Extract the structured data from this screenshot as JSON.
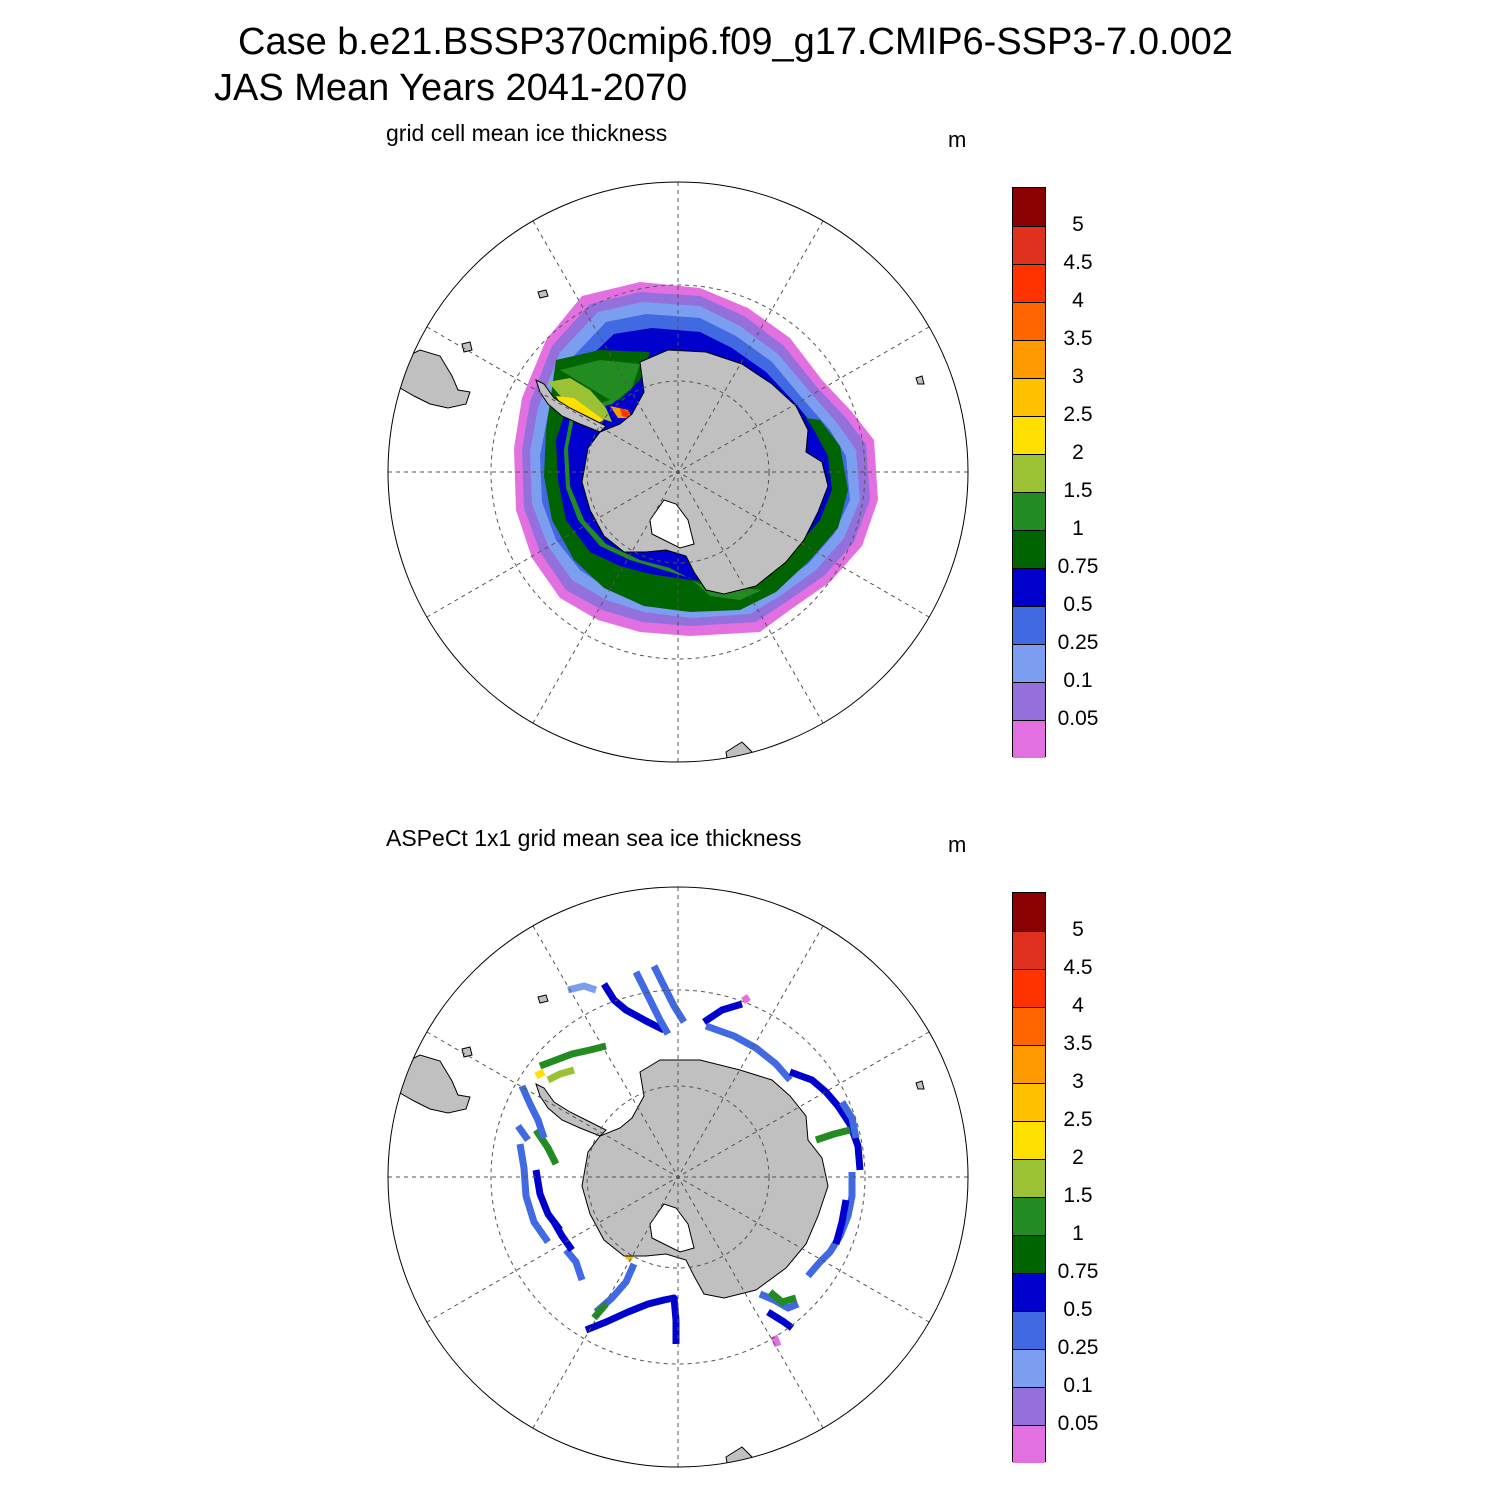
{
  "title_line1": "Case b.e21.BSSP370cmip6.f09_g17.CMIP6-SSP3-7.0.002",
  "title_line2": "JAS Mean   Years 2041-2070",
  "panels": [
    {
      "id": "model",
      "title": "grid cell mean ice thickness",
      "units": "m"
    },
    {
      "id": "obs",
      "title": "ASPeCt 1x1 grid mean sea ice thickness",
      "units": "m"
    }
  ],
  "colorbar": {
    "labels": [
      "5",
      "4.5",
      "4",
      "3.5",
      "3",
      "2.5",
      "2",
      "1.5",
      "1",
      "0.75",
      "0.5",
      "0.25",
      "0.1",
      "0.05"
    ],
    "colors": [
      "#8b0000",
      "#e0301e",
      "#ff3300",
      "#ff6600",
      "#ff9900",
      "#ffc000",
      "#ffe000",
      "#9ac234",
      "#228b22",
      "#006400",
      "#0000cd",
      "#4169e1",
      "#7b9ef0",
      "#9370db",
      "#e370e0"
    ]
  },
  "map_colors": {
    "land": "#c0c0c0",
    "ocean": "#ffffff",
    "grid": "#555555"
  },
  "projection": "south-polar-stereographic"
}
